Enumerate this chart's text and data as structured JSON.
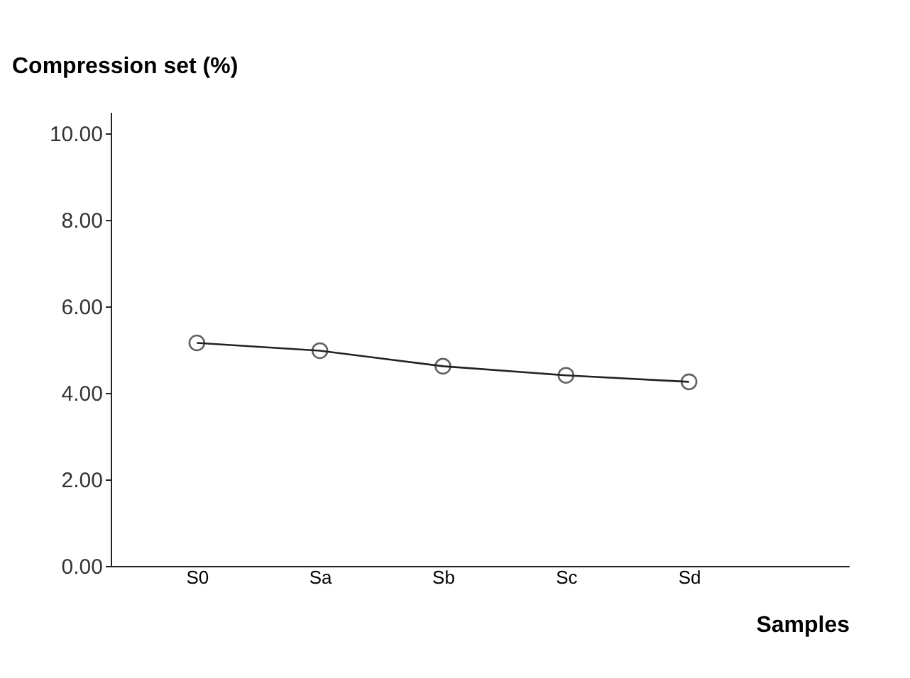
{
  "chart_data": {
    "type": "line",
    "xlabel": "Samples",
    "ylabel": "Compression set (%)",
    "categories": [
      "S0",
      "Sa",
      "Sb",
      "Sc",
      "Sd"
    ],
    "series": [
      {
        "color": "#222222",
        "values": [
          5.16,
          4.98,
          4.62,
          4.41,
          4.26
        ]
      }
    ],
    "ylim": [
      0,
      10.5
    ],
    "yticks": [
      {
        "value": 0,
        "label": "0.00"
      },
      {
        "value": 2,
        "label": "2.00"
      },
      {
        "value": 4,
        "label": "4.00"
      },
      {
        "value": 6,
        "label": "6.00"
      },
      {
        "value": 8,
        "label": "8.00"
      },
      {
        "value": 10,
        "label": "10.00"
      }
    ],
    "marker": "circle",
    "line_style": "solid",
    "grid": false
  }
}
